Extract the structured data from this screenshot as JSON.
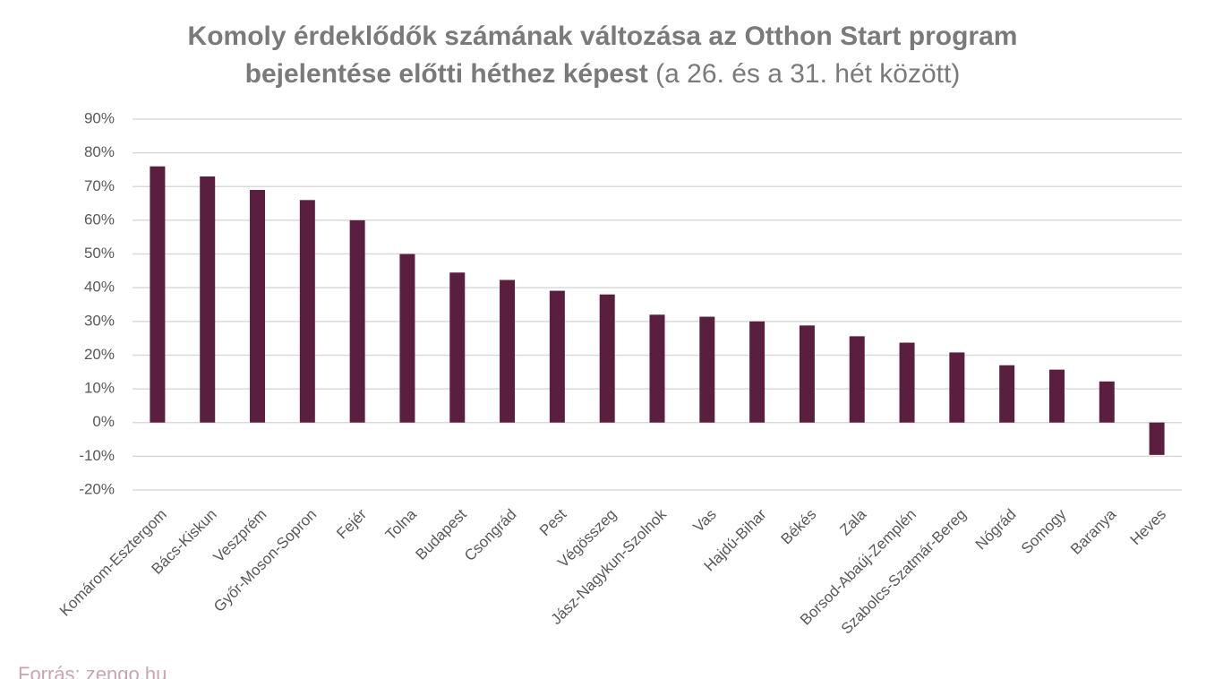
{
  "chart_data": {
    "type": "bar",
    "title_lines": [
      "Komoly érdeklődők számának változása az Otthon Start program",
      "bejelentése előtti héthez képest"
    ],
    "subtitle": "(a 26. és a 31. hét között)",
    "source": "Forrás: zengo.hu",
    "categories": [
      "Komárom-Esztergom",
      "Bács-Kiskun",
      "Veszprém",
      "Győr-Moson-Sopron",
      "Fejér",
      "Tolna",
      "Budapest",
      "Csongrád",
      "Pest",
      "Végösszeg",
      "Jász-Nagykun-Szolnok",
      "Vas",
      "Hajdú-Bihar",
      "Békés",
      "Zala",
      "Borsod-Abaúj-Zemplén",
      "Szabolcs-Szatmár-Bereg",
      "Nógrád",
      "Somogy",
      "Baranya",
      "Heves"
    ],
    "values": [
      76,
      73,
      69,
      66,
      60,
      50,
      44.5,
      42.3,
      39.1,
      38,
      32,
      31.4,
      30,
      28.8,
      25.6,
      23.7,
      20.8,
      17,
      15.7,
      12.2,
      -9.6
    ],
    "color": "#5a1f3f",
    "ylim": [
      -20,
      90
    ],
    "yticks": [
      {
        "value": -20,
        "label": "-20%"
      },
      {
        "value": -10,
        "label": "-10%"
      },
      {
        "value": 0,
        "label": "0%"
      },
      {
        "value": 10,
        "label": "10%"
      },
      {
        "value": 20,
        "label": "20%"
      },
      {
        "value": 30,
        "label": "30%"
      },
      {
        "value": 40,
        "label": "40%"
      },
      {
        "value": 50,
        "label": "50%"
      },
      {
        "value": 60,
        "label": "60%"
      },
      {
        "value": 70,
        "label": "70%"
      },
      {
        "value": 80,
        "label": "80%"
      },
      {
        "value": 90,
        "label": "90%"
      }
    ],
    "grid": true
  }
}
